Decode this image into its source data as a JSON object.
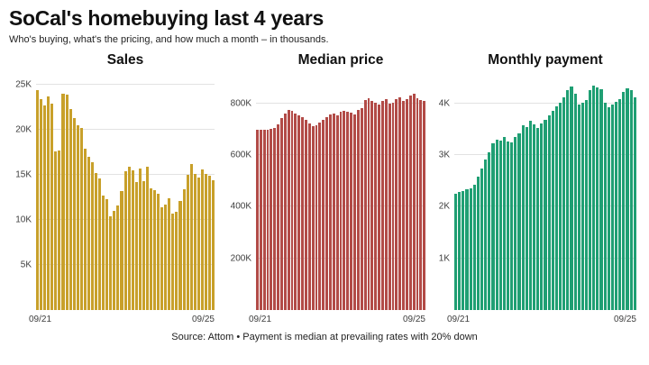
{
  "header": {
    "title": "SoCal's homebuying last 4 years",
    "subtitle": "Who's buying, what's the pricing, and how much a month – in thousands."
  },
  "footer": {
    "source": "Source: Attom • Payment is median at prevailing rates with 20% down"
  },
  "chart_data": [
    {
      "type": "bar",
      "title": "Sales",
      "color": "#c8a02a",
      "x_interval": "monthly",
      "x_tick_labels": [
        "09/21",
        "09/25"
      ],
      "y_ticks": [
        "5K",
        "10K",
        "15K",
        "20K",
        "25K"
      ],
      "y_tick_values": [
        5,
        10,
        15,
        20,
        25
      ],
      "y_max": 25.8,
      "grid": true,
      "values": [
        24.4,
        23.4,
        22.7,
        23.7,
        22.9,
        17.6,
        17.7,
        24.0,
        23.9,
        22.3,
        21.3,
        20.5,
        20.2,
        17.9,
        17.0,
        16.4,
        15.2,
        14.6,
        12.7,
        12.3,
        10.4,
        11.0,
        11.6,
        13.2,
        15.4,
        15.9,
        15.5,
        14.2,
        15.7,
        14.3,
        15.9,
        13.5,
        13.3,
        12.9,
        11.4,
        11.7,
        12.4,
        10.7,
        10.9,
        12.1,
        13.4,
        15.0,
        16.2,
        15.1,
        14.7,
        15.6,
        15.1,
        14.9,
        14.4
      ]
    },
    {
      "type": "bar",
      "title": "Median price",
      "color": "#b24b47",
      "x_interval": "monthly",
      "x_tick_labels": [
        "09/21",
        "09/25"
      ],
      "y_ticks": [
        "200K",
        "400K",
        "600K",
        "800K"
      ],
      "y_tick_values": [
        200,
        400,
        600,
        800
      ],
      "y_max": 900,
      "grid": true,
      "values": [
        697,
        698,
        698,
        699,
        700,
        705,
        720,
        742,
        762,
        773,
        770,
        762,
        753,
        745,
        737,
        722,
        710,
        716,
        726,
        737,
        748,
        757,
        762,
        753,
        766,
        771,
        767,
        763,
        758,
        774,
        780,
        812,
        820,
        808,
        804,
        795,
        808,
        815,
        799,
        804,
        817,
        822,
        811,
        818,
        830,
        838,
        820,
        812,
        808
      ]
    },
    {
      "type": "bar",
      "title": "Monthly payment",
      "color": "#1f9f73",
      "x_interval": "monthly",
      "x_tick_labels": [
        "09/21",
        "09/25"
      ],
      "y_ticks": [
        "1K",
        "2K",
        "3K",
        "4K"
      ],
      "y_tick_values": [
        1,
        2,
        3,
        4
      ],
      "y_max": 4.5,
      "grid": true,
      "values": [
        2.25,
        2.28,
        2.3,
        2.33,
        2.36,
        2.42,
        2.58,
        2.74,
        2.92,
        3.05,
        3.22,
        3.3,
        3.28,
        3.35,
        3.27,
        3.25,
        3.35,
        3.42,
        3.57,
        3.54,
        3.66,
        3.6,
        3.52,
        3.61,
        3.68,
        3.77,
        3.86,
        3.94,
        4.02,
        4.12,
        4.25,
        4.32,
        4.19,
        3.97,
        4.02,
        4.06,
        4.26,
        4.34,
        4.31,
        4.28,
        4.02,
        3.92,
        3.98,
        4.03,
        4.08,
        4.22,
        4.29,
        4.25,
        4.12
      ]
    }
  ]
}
